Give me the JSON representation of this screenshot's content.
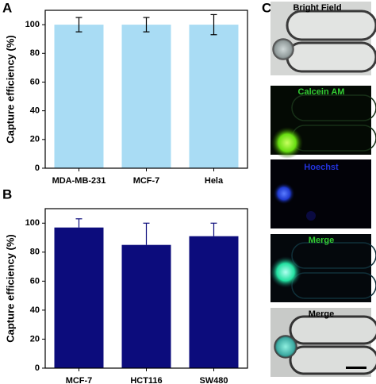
{
  "chart_data": [
    {
      "type": "bar",
      "panel_label": "A",
      "y_label": "Capture efficiency (%)",
      "categories": [
        "MDA-MB-231",
        "MCF-7",
        "Hela"
      ],
      "values": [
        100,
        100,
        100
      ],
      "errors": [
        5,
        5,
        7
      ],
      "error_direction": "both",
      "color": "#a9dcf4",
      "ylim": [
        0,
        110
      ],
      "yticks": [
        0,
        20,
        40,
        60,
        80,
        100
      ]
    },
    {
      "type": "bar",
      "panel_label": "B",
      "y_label": "Capture efficiency (%)",
      "categories": [
        "MCF-7",
        "HCT116",
        "SW480"
      ],
      "values": [
        97,
        85,
        91
      ],
      "errors": [
        6,
        15,
        9
      ],
      "error_direction": "up",
      "color": "#0c0c7c",
      "ylim": [
        0,
        110
      ],
      "yticks": [
        0,
        20,
        40,
        60,
        80,
        100
      ]
    }
  ],
  "images": {
    "panel_label": "C",
    "labels": [
      "Bright Field",
      "Calcein AM",
      "Hoechst",
      "Merge",
      "Merge"
    ]
  }
}
